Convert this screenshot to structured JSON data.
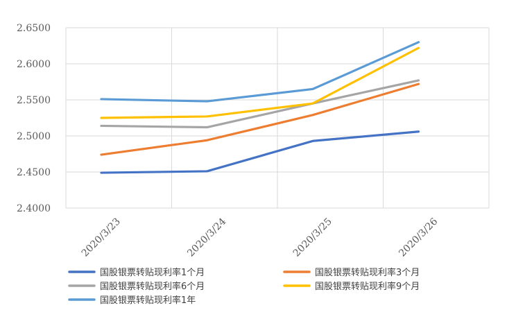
{
  "chart_data": {
    "type": "line",
    "title": "",
    "xlabel": "",
    "ylabel": "",
    "categories": [
      "2020/3/23",
      "2020/3/24",
      "2020/3/25",
      "2020/3/26"
    ],
    "ylim": [
      2.4,
      2.65
    ],
    "yticks": [
      "2.4000",
      "2.4500",
      "2.5000",
      "2.5500",
      "2.6000",
      "2.6500"
    ],
    "grid": true,
    "legend_position": "bottom",
    "series": [
      {
        "name": "国股银票转贴现利率1个月",
        "color": "#4472C4",
        "values": [
          2.449,
          2.451,
          2.493,
          2.506
        ]
      },
      {
        "name": "国股银票转贴现利率3个月",
        "color": "#ED7D31",
        "values": [
          2.474,
          2.494,
          2.529,
          2.572
        ]
      },
      {
        "name": "国股银票转贴现利率6个月",
        "color": "#A5A5A5",
        "values": [
          2.514,
          2.512,
          2.545,
          2.577
        ]
      },
      {
        "name": "国股银票转贴现利率9个月",
        "color": "#FFC000",
        "values": [
          2.525,
          2.527,
          2.545,
          2.622
        ]
      },
      {
        "name": "国股银票转贴现利率1年",
        "color": "#5B9BD5",
        "values": [
          2.551,
          2.548,
          2.565,
          2.63
        ]
      }
    ]
  }
}
